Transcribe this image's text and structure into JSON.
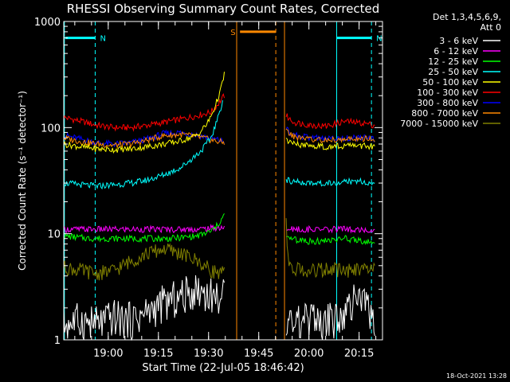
{
  "chart_data": {
    "type": "line",
    "title": "RHESSI Observing Summary Count Rates, Corrected",
    "xlabel": "Start Time (22-Jul-05 18:46:42)",
    "ylabel": "Corrected Count Rate (s⁻¹ detector⁻¹)",
    "footer": "18-Oct-2021 13:28",
    "y_scale": "log",
    "ylim": [
      1,
      1000
    ],
    "xlim_minutes": [
      0,
      95.3
    ],
    "x_ticks": [
      {
        "label": "19:00",
        "min": 13.3
      },
      {
        "label": "19:15",
        "min": 28.3
      },
      {
        "label": "19:30",
        "min": 43.3
      },
      {
        "label": "19:45",
        "min": 58.3
      },
      {
        "label": "20:00",
        "min": 73.3
      },
      {
        "label": "20:15",
        "min": 88.3
      }
    ],
    "y_ticks": [
      {
        "label": "1",
        "value": 1
      },
      {
        "label": "10",
        "value": 10
      },
      {
        "label": "100",
        "value": 100
      },
      {
        "label": "1000",
        "value": 1000
      }
    ],
    "legend_header": [
      "Det 1,3,4,5,6,9,",
      "Att 0"
    ],
    "legend": [
      {
        "label": "3 - 6 keV",
        "color": "#ffffff"
      },
      {
        "label": "6 - 12 keV",
        "color": "#ff00ff"
      },
      {
        "label": "12 - 25 keV",
        "color": "#00ff00"
      },
      {
        "label": "25 - 50 keV",
        "color": "#00ffff"
      },
      {
        "label": "50 - 100 keV",
        "color": "#ffff00"
      },
      {
        "label": "100 - 300 keV",
        "color": "#ff0000"
      },
      {
        "label": "300 - 800 keV",
        "color": "#0000ff"
      },
      {
        "label": "800 - 7000 keV",
        "color": "#ff8800"
      },
      {
        "label": "7000 - 15000 keV",
        "color": "#808000"
      }
    ],
    "annotations": [
      {
        "label": "N",
        "color": "#00ffff",
        "bar_min": [
          0.5,
          9.4
        ],
        "bar_value": 700,
        "dashed_min": 9.4
      },
      {
        "label": "N",
        "color": "#00ffff",
        "bar_min": [
          81.6,
          92.0
        ],
        "bar_value": 700,
        "dashed_min": 92.0
      },
      {
        "label": "S",
        "color": "#ff8800",
        "bar_min": [
          52.7,
          63.4
        ],
        "bar_value": 800,
        "dashed_min": 63.4
      }
    ],
    "vertical_lines": [
      {
        "min": 0.2,
        "color": "#00ffff",
        "style": "solid"
      },
      {
        "min": 51.7,
        "color": "#ff8800",
        "style": "solid"
      },
      {
        "min": 66.0,
        "color": "#ff8800",
        "style": "solid"
      },
      {
        "min": 81.6,
        "color": "#00ffff",
        "style": "solid"
      }
    ],
    "series": [
      {
        "name": "100 - 300 keV",
        "color": "#ff0000",
        "segments": [
          {
            "x": [
              0,
              5,
              10,
              15,
              20,
              25,
              30,
              35,
              40,
              44,
              46,
              48
            ],
            "y": [
              125,
              115,
              105,
              100,
              100,
              105,
              112,
              120,
              130,
              140,
              165,
              200
            ]
          },
          {
            "x": [
              66.5,
              67.5,
              69,
              72,
              75,
              78,
              81,
              84,
              87,
              90,
              93
            ],
            "y": [
              130,
              120,
              112,
              108,
              105,
              103,
              108,
              115,
              112,
              110,
              105
            ]
          }
        ]
      },
      {
        "name": "300 - 800 keV",
        "color": "#0000ff",
        "segments": [
          {
            "x": [
              0,
              5,
              10,
              15,
              20,
              25,
              30,
              35,
              40,
              45,
              48
            ],
            "y": [
              85,
              78,
              72,
              70,
              72,
              78,
              88,
              90,
              85,
              78,
              74
            ]
          },
          {
            "x": [
              66.5,
              68,
              71,
              75,
              80,
              85,
              90,
              93
            ],
            "y": [
              100,
              87,
              82,
              80,
              78,
              80,
              80,
              78
            ]
          }
        ]
      },
      {
        "name": "800 - 7000 keV",
        "color": "#ff8800",
        "segments": [
          {
            "x": [
              0,
              5,
              10,
              15,
              20,
              25,
              30,
              35,
              40,
              45,
              48
            ],
            "y": [
              80,
              74,
              70,
              68,
              70,
              76,
              84,
              86,
              82,
              75,
              72
            ]
          },
          {
            "x": [
              66.5,
              68,
              71,
              75,
              80,
              85,
              90,
              93
            ],
            "y": [
              95,
              84,
              80,
              77,
              76,
              78,
              78,
              76
            ]
          }
        ]
      },
      {
        "name": "50 - 100 keV",
        "color": "#ffff00",
        "segments": [
          {
            "x": [
              0,
              5,
              10,
              15,
              20,
              25,
              30,
              35,
              40,
              43,
              45,
              47,
              48
            ],
            "y": [
              70,
              66,
              63,
              62,
              63,
              66,
              70,
              75,
              85,
              110,
              150,
              230,
              320
            ]
          },
          {
            "x": [
              66.5,
              68,
              71,
              75,
              80,
              85,
              90,
              93
            ],
            "y": [
              75,
              70,
              68,
              67,
              66,
              68,
              67,
              66
            ]
          }
        ]
      },
      {
        "name": "25 - 50 keV",
        "color": "#00ffff",
        "segments": [
          {
            "x": [
              0,
              5,
              10,
              15,
              20,
              25,
              30,
              35,
              38,
              41,
              44,
              46,
              47.5
            ],
            "y": [
              30,
              29,
              28,
              29,
              30,
              32,
              36,
              42,
              50,
              60,
              80,
              120,
              180
            ]
          },
          {
            "x": [
              66.5,
              68,
              72,
              76,
              80,
              85,
              90,
              93
            ],
            "y": [
              32,
              31,
              30,
              30,
              30,
              31,
              31,
              30
            ]
          }
        ]
      },
      {
        "name": "6 - 12 keV",
        "color": "#ff00ff",
        "segments": [
          {
            "x": [
              0,
              8,
              16,
              24,
              32,
              40,
              48
            ],
            "y": [
              11,
              11,
              11,
              11,
              11,
              11,
              11.5
            ]
          },
          {
            "x": [
              66.5,
              72,
              78,
              84,
              90,
              93
            ],
            "y": [
              11,
              11,
              11,
              11,
              11,
              11
            ]
          }
        ]
      },
      {
        "name": "12 - 25 keV",
        "color": "#00ff00",
        "segments": [
          {
            "x": [
              0,
              8,
              16,
              24,
              32,
              40,
              44,
              46,
              48
            ],
            "y": [
              9.5,
              9,
              9,
              9,
              9,
              9.5,
              10.5,
              12,
              15
            ]
          },
          {
            "x": [
              66.5,
              72,
              78,
              84,
              90,
              93
            ],
            "y": [
              9,
              8.5,
              8.5,
              9,
              8.5,
              8.5
            ]
          }
        ]
      },
      {
        "name": "7000 - 15000 keV",
        "color": "#808000",
        "segments": [
          {
            "x": [
              0,
              5,
              10,
              15,
              20,
              25,
              30,
              35,
              40,
              44,
              48
            ],
            "y": [
              4.8,
              4.5,
              4.2,
              4.5,
              5.5,
              6.5,
              7.2,
              6.5,
              5.5,
              4.5,
              4.2
            ]
          },
          {
            "x": [
              66.5,
              67,
              68,
              72,
              76,
              80,
              84,
              88,
              93
            ],
            "y": [
              12,
              6,
              4.8,
              4.5,
              4.5,
              4.6,
              4.5,
              4.5,
              4.5
            ]
          }
        ]
      },
      {
        "name": "3 - 6 keV",
        "color": "#ffffff",
        "segments": [
          {
            "x": [
              0,
              5,
              10,
              15,
              20,
              25,
              30,
              35,
              40,
              44,
              48
            ],
            "y": [
              1.4,
              1.5,
              1.4,
              1.6,
              1.5,
              1.8,
              2.2,
              2.5,
              3.0,
              2.6,
              2.5
            ]
          },
          {
            "x": [
              66.5,
              70,
              74,
              78,
              82,
              86,
              90,
              93
            ],
            "y": [
              1.5,
              1.4,
              1.5,
              1.4,
              1.6,
              2.2,
              2.5,
              1.3
            ]
          }
        ]
      }
    ]
  }
}
